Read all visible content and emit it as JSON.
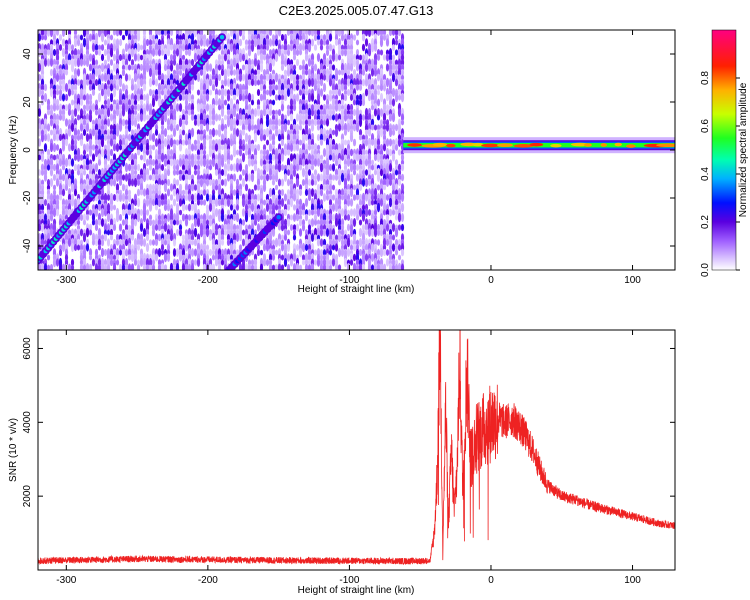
{
  "title": "C2E3.2025.005.07.47.G13",
  "chart_data": [
    {
      "type": "heatmap",
      "xlabel": "Height of straight line (km)",
      "ylabel": "Frequency (Hz)",
      "xlim": [
        -320,
        130
      ],
      "ylim": [
        -50,
        50
      ],
      "x_ticks": [
        -300,
        -200,
        -100,
        0,
        100
      ],
      "y_ticks": [
        -40,
        -20,
        0,
        20,
        40
      ],
      "colorbar": {
        "label": "Normalized spectral amplitude",
        "range": [
          0,
          1
        ],
        "ticks": [
          0.0,
          0.2,
          0.4,
          0.6,
          0.8
        ],
        "colors": [
          "#ffffff",
          "#b08cff",
          "#6a00e0",
          "#0000ff",
          "#00c8ff",
          "#00ff60",
          "#c8ff00",
          "#ffb000",
          "#ff2000",
          "#ff0080"
        ]
      },
      "noise_region_x": [
        -320,
        -62
      ],
      "features": [
        {
          "name": "rising streak",
          "x": [
            -320,
            -190
          ],
          "y": [
            -46,
            47
          ],
          "amplitude": 0.35
        },
        {
          "name": "lower streak",
          "x": [
            -185,
            -150
          ],
          "y": [
            -50,
            -28
          ],
          "amplitude": 0.25
        },
        {
          "name": "signal band",
          "x": [
            -62,
            130
          ],
          "y": [
            2,
            2
          ],
          "amplitude": 0.9
        }
      ]
    },
    {
      "type": "line",
      "xlabel": "Height of straight line (km)",
      "ylabel": "SNR (10 * v/v)",
      "xlim": [
        -320,
        130
      ],
      "ylim": [
        0,
        6500
      ],
      "x_ticks": [
        -300,
        -200,
        -100,
        0,
        100
      ],
      "y_ticks": [
        2000,
        4000,
        6000
      ],
      "line_color": "#ee2222",
      "x": [
        -320,
        -250,
        -200,
        -150,
        -100,
        -60,
        -43,
        -40,
        -38,
        -36,
        -34,
        -32,
        -30,
        -28,
        -26,
        -24,
        -22,
        -20,
        -17,
        -14,
        -10,
        -5,
        0,
        5,
        10,
        15,
        20,
        25,
        30,
        35,
        40,
        45,
        50,
        60,
        70,
        80,
        90,
        100,
        110,
        120,
        130
      ],
      "y": [
        250,
        300,
        280,
        260,
        250,
        240,
        250,
        1000,
        2600,
        6500,
        600,
        4400,
        1200,
        3300,
        1600,
        2700,
        5800,
        2200,
        5400,
        3000,
        3600,
        3800,
        4000,
        4100,
        4000,
        4100,
        3900,
        3600,
        3200,
        2700,
        2300,
        2150,
        2000,
        1900,
        1750,
        1650,
        1550,
        1450,
        1350,
        1250,
        1200
      ]
    }
  ]
}
